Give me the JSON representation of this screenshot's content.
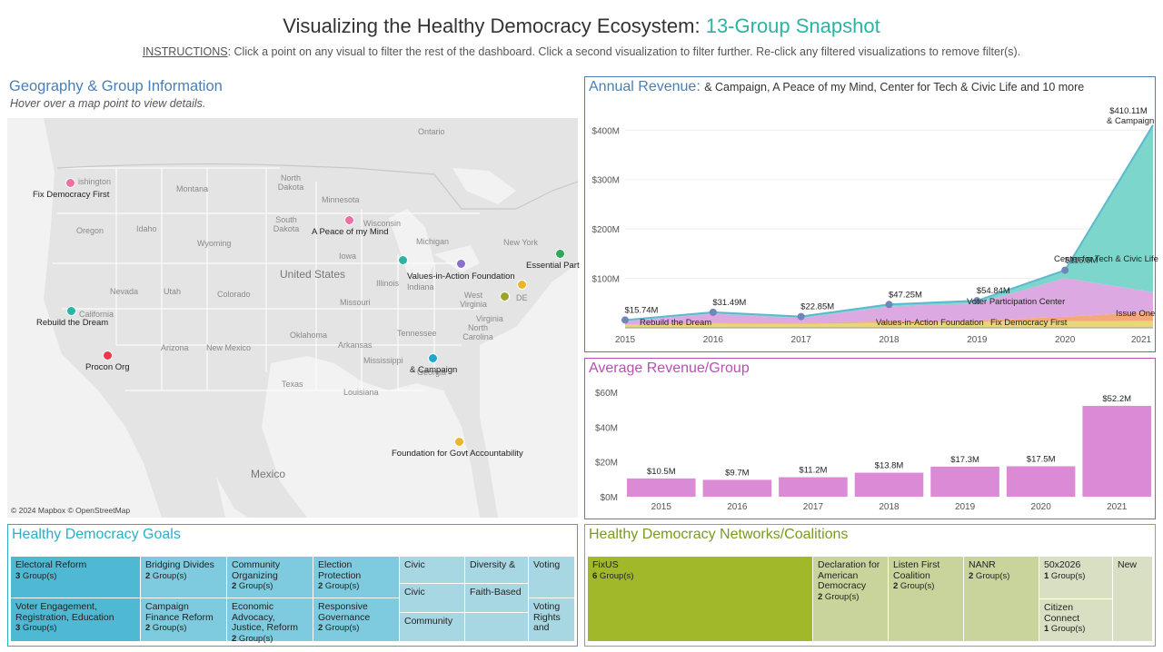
{
  "header": {
    "title_main": "Visualizing the Healthy Democracy Ecosystem: ",
    "title_accent": "13-Group Snapshot",
    "instructions_prefix": "INSTRUCTIONS",
    "instructions_text": ": Click a point on any visual to filter the rest of the dashboard. Click a second visualization to filter further. Re-click any filtered visualizations to remove filter(s)."
  },
  "geo": {
    "title": "Geography & Group Information",
    "subtitle": "Hover over a map point to view details.",
    "credit": "© 2024 Mapbox © OpenStreetMap",
    "country_labels": [
      "United States",
      "Mexico"
    ],
    "state_labels": [
      "ishington",
      "Montana",
      "North Dakota",
      "Minnesota",
      "Ontario",
      "Oregon",
      "Idaho",
      "Wyoming",
      "South Dakota",
      "Wisconsin",
      "Michigan",
      "New York",
      "Nevada",
      "Utah",
      "Colorado",
      "Iowa",
      "Illinois",
      "Indiana",
      "Missouri",
      "West Virginia",
      "Virginia",
      "DE",
      "California",
      "Arizona",
      "New Mexico",
      "Oklahoma",
      "Arkansas",
      "Tennessee",
      "North Carolina",
      "Texas",
      "Mississippi",
      "Georgia",
      "Louisiana"
    ],
    "points": [
      {
        "label": "Fix Democracy First",
        "color": "#f06fa3"
      },
      {
        "label": "A Peace of my Mind",
        "color": "#f06fa3"
      },
      {
        "label": "Values-in-Action Foundation",
        "color": "#8a6fd0"
      },
      {
        "label": "Essential Part",
        "color": "#2ea85a"
      },
      {
        "label": "Rebuild the Dream",
        "color": "#2bb3a3"
      },
      {
        "label": "Procon Org",
        "color": "#e8384f"
      },
      {
        "label": "& Campaign",
        "color": "#1ea7c9"
      },
      {
        "label": "Foundation for Govt Accountability",
        "color": "#e9b52a"
      },
      {
        "label": "",
        "color": "#2bb3a3"
      },
      {
        "label": "",
        "color": "#9aa52a"
      },
      {
        "label": "",
        "color": "#e9b52a"
      }
    ]
  },
  "revenue": {
    "title": "Annual Revenue:",
    "subtitle": "& Campaign, A Peace of my Mind, Center for Tech & Civic Life and 10 more"
  },
  "average": {
    "title": "Average Revenue/Group"
  },
  "chart_data": [
    {
      "type": "area",
      "title": "Annual Revenue",
      "x": [
        "2015",
        "2016",
        "2017",
        "2018",
        "2019",
        "2020",
        "2021"
      ],
      "total_labels": [
        "$15.74M",
        "$31.49M",
        "$22.85M",
        "$47.25M",
        "$54.84M",
        "$116.5M",
        "$410.11M"
      ],
      "series": [
        {
          "name": "& Campaign",
          "values": [
            2,
            3,
            3,
            4,
            5,
            16,
            338
          ]
        },
        {
          "name": "Voter Participation Center",
          "values": [
            7,
            18,
            10,
            30,
            35,
            78,
            40
          ]
        },
        {
          "name": "Issue One",
          "values": [
            1,
            2,
            2,
            3,
            3,
            9,
            18
          ]
        },
        {
          "name": "Other groups",
          "values": [
            5.74,
            8.49,
            7.85,
            10.25,
            11.84,
            13.5,
            14.11
          ]
        }
      ],
      "annotations": [
        "Rebuild the Dream",
        "Values-in-Action Foundation",
        "Fix Democracy First",
        "Center for Tech & Civic Life",
        "& Campaign",
        "Voter Participation Center",
        "Issue One"
      ],
      "yticks": [
        "$100M",
        "$200M",
        "$300M",
        "$400M"
      ],
      "ylim": [
        0,
        430
      ],
      "series_colors": [
        "#6fd1c6",
        "#d9a0e0",
        "#f4a06a",
        "#e6d26a"
      ]
    },
    {
      "type": "bar",
      "title": "Average Revenue/Group",
      "categories": [
        "2015",
        "2016",
        "2017",
        "2018",
        "2019",
        "2020",
        "2021"
      ],
      "values": [
        10.5,
        9.7,
        11.2,
        13.8,
        17.3,
        17.5,
        52.2
      ],
      "value_labels": [
        "$10.5M",
        "$9.7M",
        "$11.2M",
        "$13.8M",
        "$17.3M",
        "$17.5M",
        "$52.2M"
      ],
      "yticks": [
        "$0M",
        "$20M",
        "$40M",
        "$60M"
      ],
      "ylim": [
        0,
        60
      ],
      "color": "#db8ad6"
    }
  ],
  "goals": {
    "title": "Healthy Democracy Goals",
    "cells": [
      {
        "label": "Electoral Reform",
        "count": "3",
        "suffix": " Group(s)"
      },
      {
        "label": "Bridging Divides",
        "count": "2",
        "suffix": " Group(s)"
      },
      {
        "label": "Community Organizing",
        "count": "2",
        "suffix": " Group(s)"
      },
      {
        "label": "Election Protection",
        "count": "2",
        "suffix": " Group(s)"
      },
      {
        "label": "Civic",
        "count": "",
        "suffix": ""
      },
      {
        "label": "Diversity &",
        "count": "",
        "suffix": ""
      },
      {
        "label": "Voting",
        "count": "",
        "suffix": ""
      },
      {
        "label": "Voter Engagement, Registration, Education",
        "count": "3",
        "suffix": " Group(s)"
      },
      {
        "label": "Campaign Finance Reform",
        "count": "2",
        "suffix": " Group(s)"
      },
      {
        "label": "Economic Advocacy, Justice, Reform",
        "count": "2",
        "suffix": " Group(s)"
      },
      {
        "label": "Responsive Governance",
        "count": "2",
        "suffix": " Group(s)"
      },
      {
        "label": "Civic",
        "count": "",
        "suffix": ""
      },
      {
        "label": "Faith-Based",
        "count": "",
        "suffix": ""
      },
      {
        "label": "Community",
        "count": "",
        "suffix": ""
      },
      {
        "label": "",
        "count": "",
        "suffix": ""
      },
      {
        "label": "Voting Rights and",
        "count": "",
        "suffix": ""
      }
    ]
  },
  "networks": {
    "title": "Healthy Democracy Networks/Coalitions",
    "cells": [
      {
        "label": "FixUS",
        "count": "6",
        "suffix": " Group(s)"
      },
      {
        "label": "Declaration for American Democracy",
        "count": "2",
        "suffix": " Group(s)"
      },
      {
        "label": "Listen First Coalition",
        "count": "2",
        "suffix": " Group(s)"
      },
      {
        "label": "NANR",
        "count": "2",
        "suffix": " Group(s)"
      },
      {
        "label": "50x2026",
        "count": "1",
        "suffix": " Group(s)"
      },
      {
        "label": "New",
        "count": "",
        "suffix": ""
      },
      {
        "label": "Citizen Connect",
        "count": "1",
        "suffix": " Group(s)"
      }
    ]
  }
}
